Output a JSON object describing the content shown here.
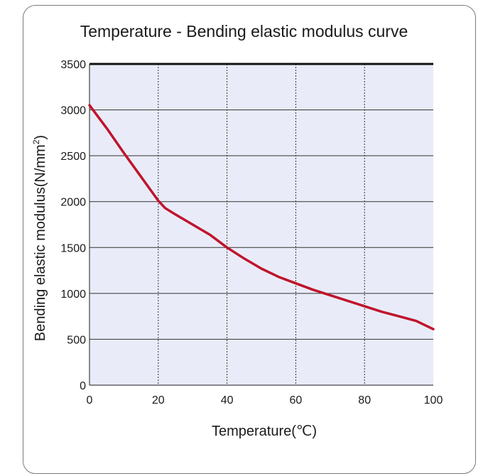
{
  "chart_data": {
    "type": "line",
    "title": "Temperature - Bending elastic modulus curve",
    "xlabel": "Temperature(℃)",
    "ylabel_main": "Bending elastic modulus(N/mm",
    "ylabel_sup": "2",
    "ylabel_close": ")",
    "xlim": [
      0,
      100
    ],
    "ylim": [
      0,
      3500
    ],
    "x_ticks": [
      0,
      20,
      40,
      60,
      80,
      100
    ],
    "y_ticks": [
      0,
      500,
      1000,
      1500,
      2000,
      2500,
      3000,
      3500
    ],
    "grid": true,
    "series": [
      {
        "color": "#c0142c",
        "x": [
          0,
          5,
          10,
          15,
          20,
          22,
          25,
          30,
          35,
          40,
          45,
          50,
          55,
          60,
          65,
          70,
          75,
          80,
          85,
          90,
          95,
          100
        ],
        "y": [
          3050,
          2800,
          2530,
          2270,
          2010,
          1930,
          1860,
          1750,
          1640,
          1500,
          1380,
          1270,
          1180,
          1110,
          1040,
          980,
          920,
          860,
          800,
          750,
          700,
          610
        ]
      }
    ]
  },
  "colors": {
    "plot_background": "#e9ecf8",
    "gridline": "#333333",
    "card_border": "#7a7a7a"
  }
}
